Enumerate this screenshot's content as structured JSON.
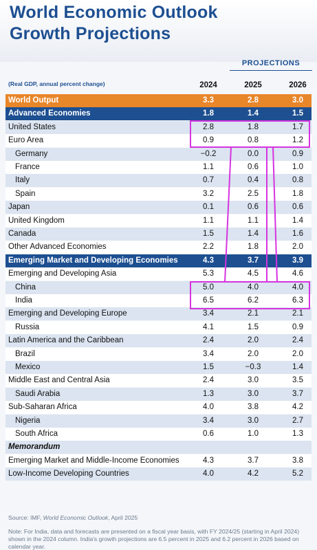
{
  "header": {
    "title_lines": [
      "World Economic Outlook",
      "Growth Projections"
    ]
  },
  "table": {
    "projections_label": "PROJECTIONS",
    "units": "(Real GDP, annual percent change)",
    "columns": [
      "2024",
      "2025",
      "2026"
    ],
    "rows": [
      [
        "World Output",
        "3.3",
        "2.8",
        "3.0"
      ],
      [
        "Advanced Economies",
        "1.8",
        "1.4",
        "1.5"
      ],
      [
        "United States",
        "2.8",
        "1.8",
        "1.7"
      ],
      [
        "Euro Area",
        "0.9",
        "0.8",
        "1.2"
      ],
      [
        "Germany",
        "−0.2",
        "0.0",
        "0.9"
      ],
      [
        "France",
        "1.1",
        "0.6",
        "1.0"
      ],
      [
        "Italy",
        "0.7",
        "0.4",
        "0.8"
      ],
      [
        "Spain",
        "3.2",
        "2.5",
        "1.8"
      ],
      [
        "Japan",
        "0.1",
        "0.6",
        "0.6"
      ],
      [
        "United Kingdom",
        "1.1",
        "1.1",
        "1.4"
      ],
      [
        "Canada",
        "1.5",
        "1.4",
        "1.6"
      ],
      [
        "Other Advanced Economies",
        "2.2",
        "1.8",
        "2.0"
      ],
      [
        "Emerging Market and Developing Economies",
        "4.3",
        "3.7",
        "3.9"
      ],
      [
        "Emerging and Developing Asia",
        "5.3",
        "4.5",
        "4.6"
      ],
      [
        "China",
        "5.0",
        "4.0",
        "4.0"
      ],
      [
        "India",
        "6.5",
        "6.2",
        "6.3"
      ],
      [
        "Emerging and Developing Europe",
        "3.4",
        "2.1",
        "2.1"
      ],
      [
        "Russia",
        "4.1",
        "1.5",
        "0.9"
      ],
      [
        "Latin America and the Caribbean",
        "2.4",
        "2.0",
        "2.4"
      ],
      [
        "Brazil",
        "3.4",
        "2.0",
        "2.0"
      ],
      [
        "Mexico",
        "1.5",
        "−0.3",
        "1.4"
      ],
      [
        "Middle East and Central Asia",
        "2.4",
        "3.0",
        "3.5"
      ],
      [
        "Saudi Arabia",
        "1.3",
        "3.0",
        "3.7"
      ],
      [
        "Sub-Saharan Africa",
        "4.0",
        "3.8",
        "4.2"
      ],
      [
        "Nigeria",
        "3.4",
        "3.0",
        "2.7"
      ],
      [
        "South Africa",
        "0.6",
        "1.0",
        "1.3"
      ],
      [
        "Memorandum"
      ],
      [
        "Emerging Market and Middle-Income Economies",
        "4.3",
        "3.7",
        "3.8"
      ],
      [
        "Low-Income Developing Countries",
        "4.0",
        "4.2",
        "5.2"
      ]
    ]
  },
  "footer": {
    "source": [
      "Source: IMF, ",
      "World Economic Outlook",
      ", April 2025"
    ],
    "note": "Note: For India, data and forecasts are presented on a fiscal year basis, with FY 2024/25 (starting in April 2024) shown in the 2024 column. India's growth projections are 6.5 percent in 2025 and 6.2 percent in 2026 based on calendar year."
  }
}
